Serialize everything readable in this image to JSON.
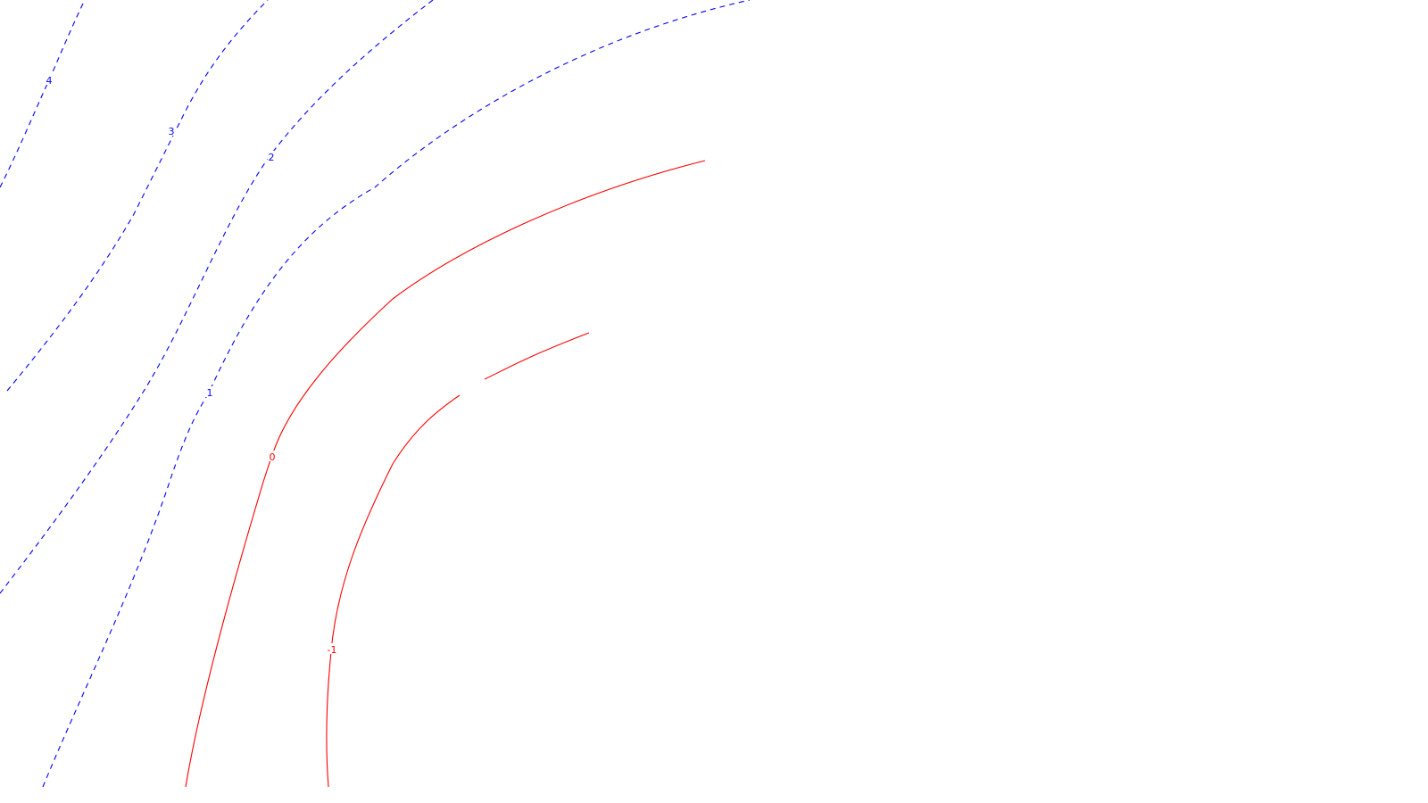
{
  "chart_data": {
    "type": "contour",
    "title": "",
    "xlabel": "",
    "ylabel": "",
    "grid": false,
    "legend": "none",
    "levels": [
      {
        "name": "contour-level-4",
        "value": 4,
        "label": "4",
        "style": "dashed",
        "color": "#0000ff"
      },
      {
        "name": "contour-level-3",
        "value": 3,
        "label": "3",
        "style": "dashed",
        "color": "#0000ff"
      },
      {
        "name": "contour-level-2",
        "value": 2,
        "label": "2",
        "style": "dashed",
        "color": "#0000ff"
      },
      {
        "name": "contour-level-1",
        "value": 1,
        "label": "1",
        "style": "dashed",
        "color": "#0000ff"
      },
      {
        "name": "contour-level-0",
        "value": 0,
        "label": "0",
        "style": "solid",
        "color": "#ff0000"
      },
      {
        "name": "contour-level-neg-1",
        "value": -1,
        "label": "-1",
        "style": "solid",
        "color": "#ff0000"
      }
    ]
  }
}
